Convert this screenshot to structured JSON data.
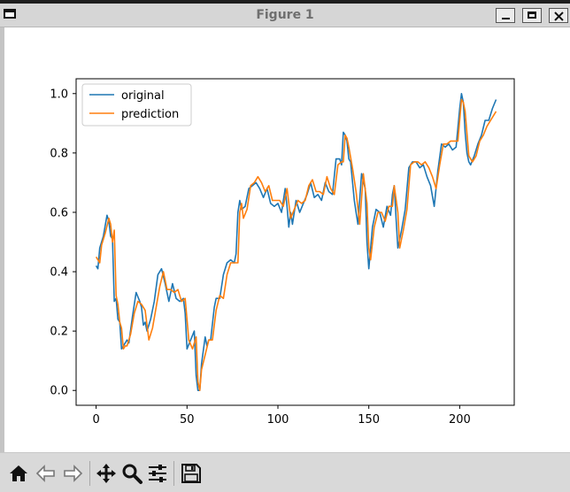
{
  "window": {
    "title": "Figure 1"
  },
  "toolbar": {
    "buttons": [
      {
        "name": "home-icon",
        "action": "Home"
      },
      {
        "name": "back-arrow-icon",
        "action": "Back"
      },
      {
        "name": "forward-arrow-icon",
        "action": "Forward"
      },
      {
        "name": "pan-move-icon",
        "action": "Pan"
      },
      {
        "name": "zoom-magnifier-icon",
        "action": "Zoom"
      },
      {
        "name": "configure-subplots-icon",
        "action": "Subplots"
      },
      {
        "name": "save-disk-icon",
        "action": "Save"
      }
    ]
  },
  "chart_data": {
    "type": "line",
    "title": "",
    "xlabel": "",
    "ylabel": "",
    "xlim": [
      -11,
      230
    ],
    "ylim": [
      -0.05,
      1.05
    ],
    "xticks": [
      0,
      50,
      100,
      150,
      200
    ],
    "yticks": [
      0.0,
      0.2,
      0.4,
      0.6,
      0.8,
      1.0
    ],
    "xtick_labels": [
      "0",
      "50",
      "100",
      "150",
      "200"
    ],
    "ytick_labels": [
      "0.0",
      "0.2",
      "0.4",
      "0.6",
      "0.8",
      "1.0"
    ],
    "grid": false,
    "legend_position": "upper-left",
    "series": [
      {
        "name": "original",
        "color": "#1f77b4",
        "keypoints": [
          [
            0,
            0.42
          ],
          [
            1,
            0.41
          ],
          [
            2,
            0.48
          ],
          [
            4,
            0.52
          ],
          [
            6,
            0.59
          ],
          [
            7,
            0.57
          ],
          [
            8,
            0.52
          ],
          [
            9,
            0.51
          ],
          [
            10,
            0.3
          ],
          [
            11,
            0.31
          ],
          [
            12,
            0.24
          ],
          [
            13,
            0.23
          ],
          [
            14,
            0.14
          ],
          [
            15,
            0.15
          ],
          [
            16,
            0.16
          ],
          [
            17,
            0.17
          ],
          [
            18,
            0.16
          ],
          [
            20,
            0.25
          ],
          [
            22,
            0.33
          ],
          [
            24,
            0.3
          ],
          [
            25,
            0.28
          ],
          [
            26,
            0.22
          ],
          [
            27,
            0.23
          ],
          [
            28,
            0.2
          ],
          [
            30,
            0.24
          ],
          [
            32,
            0.3
          ],
          [
            34,
            0.39
          ],
          [
            36,
            0.41
          ],
          [
            38,
            0.36
          ],
          [
            40,
            0.3
          ],
          [
            42,
            0.36
          ],
          [
            44,
            0.31
          ],
          [
            46,
            0.3
          ],
          [
            48,
            0.31
          ],
          [
            49,
            0.26
          ],
          [
            50,
            0.14
          ],
          [
            52,
            0.17
          ],
          [
            54,
            0.2
          ],
          [
            55,
            0.05
          ],
          [
            56,
            0.0
          ],
          [
            57,
            0.0
          ],
          [
            58,
            0.09
          ],
          [
            60,
            0.18
          ],
          [
            61,
            0.15
          ],
          [
            62,
            0.17
          ],
          [
            63,
            0.17
          ],
          [
            65,
            0.28
          ],
          [
            66,
            0.31
          ],
          [
            68,
            0.31
          ],
          [
            70,
            0.39
          ],
          [
            72,
            0.43
          ],
          [
            74,
            0.44
          ],
          [
            76,
            0.43
          ],
          [
            77,
            0.46
          ],
          [
            78,
            0.6
          ],
          [
            79,
            0.64
          ],
          [
            80,
            0.61
          ],
          [
            82,
            0.62
          ],
          [
            84,
            0.68
          ],
          [
            86,
            0.69
          ],
          [
            88,
            0.7
          ],
          [
            90,
            0.68
          ],
          [
            92,
            0.65
          ],
          [
            94,
            0.68
          ],
          [
            96,
            0.63
          ],
          [
            98,
            0.62
          ],
          [
            100,
            0.63
          ],
          [
            102,
            0.6
          ],
          [
            104,
            0.68
          ],
          [
            105,
            0.62
          ],
          [
            106,
            0.55
          ],
          [
            107,
            0.6
          ],
          [
            108,
            0.56
          ],
          [
            110,
            0.64
          ],
          [
            112,
            0.6
          ],
          [
            114,
            0.63
          ],
          [
            116,
            0.66
          ],
          [
            118,
            0.7
          ],
          [
            120,
            0.65
          ],
          [
            122,
            0.66
          ],
          [
            124,
            0.64
          ],
          [
            126,
            0.7
          ],
          [
            128,
            0.67
          ],
          [
            130,
            0.66
          ],
          [
            132,
            0.78
          ],
          [
            134,
            0.78
          ],
          [
            135,
            0.76
          ],
          [
            136,
            0.87
          ],
          [
            137,
            0.86
          ],
          [
            138,
            0.84
          ],
          [
            139,
            0.78
          ],
          [
            140,
            0.77
          ],
          [
            142,
            0.64
          ],
          [
            143,
            0.6
          ],
          [
            144,
            0.56
          ],
          [
            146,
            0.73
          ],
          [
            148,
            0.68
          ],
          [
            149,
            0.5
          ],
          [
            150,
            0.41
          ],
          [
            152,
            0.55
          ],
          [
            154,
            0.61
          ],
          [
            156,
            0.6
          ],
          [
            158,
            0.55
          ],
          [
            160,
            0.62
          ],
          [
            162,
            0.59
          ],
          [
            163,
            0.66
          ],
          [
            164,
            0.69
          ],
          [
            165,
            0.58
          ],
          [
            166,
            0.48
          ],
          [
            168,
            0.54
          ],
          [
            170,
            0.61
          ],
          [
            172,
            0.75
          ],
          [
            174,
            0.77
          ],
          [
            176,
            0.77
          ],
          [
            178,
            0.75
          ],
          [
            180,
            0.76
          ],
          [
            182,
            0.72
          ],
          [
            184,
            0.69
          ],
          [
            186,
            0.62
          ],
          [
            188,
            0.74
          ],
          [
            190,
            0.83
          ],
          [
            192,
            0.82
          ],
          [
            194,
            0.83
          ],
          [
            196,
            0.81
          ],
          [
            198,
            0.82
          ],
          [
            200,
            0.95
          ],
          [
            201,
            1.0
          ],
          [
            202,
            0.97
          ],
          [
            203,
            0.87
          ],
          [
            204,
            0.8
          ],
          [
            205,
            0.77
          ],
          [
            206,
            0.76
          ],
          [
            208,
            0.79
          ],
          [
            210,
            0.83
          ],
          [
            212,
            0.86
          ],
          [
            214,
            0.91
          ],
          [
            216,
            0.91
          ],
          [
            218,
            0.95
          ],
          [
            220,
            0.98
          ]
        ]
      },
      {
        "name": "prediction",
        "color": "#ff7f0e",
        "keypoints": [
          [
            0,
            0.45
          ],
          [
            1,
            0.44
          ],
          [
            2,
            0.43
          ],
          [
            3,
            0.49
          ],
          [
            5,
            0.53
          ],
          [
            7,
            0.58
          ],
          [
            8,
            0.56
          ],
          [
            9,
            0.5
          ],
          [
            10,
            0.54
          ],
          [
            11,
            0.32
          ],
          [
            12,
            0.29
          ],
          [
            13,
            0.23
          ],
          [
            14,
            0.21
          ],
          [
            15,
            0.14
          ],
          [
            16,
            0.15
          ],
          [
            17,
            0.15
          ],
          [
            19,
            0.19
          ],
          [
            21,
            0.26
          ],
          [
            23,
            0.3
          ],
          [
            25,
            0.29
          ],
          [
            27,
            0.27
          ],
          [
            29,
            0.17
          ],
          [
            31,
            0.21
          ],
          [
            33,
            0.28
          ],
          [
            35,
            0.35
          ],
          [
            37,
            0.4
          ],
          [
            39,
            0.34
          ],
          [
            41,
            0.34
          ],
          [
            43,
            0.33
          ],
          [
            45,
            0.34
          ],
          [
            47,
            0.3
          ],
          [
            49,
            0.31
          ],
          [
            51,
            0.17
          ],
          [
            53,
            0.14
          ],
          [
            55,
            0.18
          ],
          [
            56,
            0.03
          ],
          [
            57,
            0.0
          ],
          [
            58,
            0.07
          ],
          [
            60,
            0.12
          ],
          [
            62,
            0.17
          ],
          [
            64,
            0.17
          ],
          [
            66,
            0.27
          ],
          [
            68,
            0.32
          ],
          [
            70,
            0.31
          ],
          [
            72,
            0.39
          ],
          [
            74,
            0.43
          ],
          [
            76,
            0.43
          ],
          [
            78,
            0.43
          ],
          [
            79,
            0.6
          ],
          [
            80,
            0.63
          ],
          [
            81,
            0.58
          ],
          [
            83,
            0.61
          ],
          [
            85,
            0.69
          ],
          [
            87,
            0.7
          ],
          [
            89,
            0.72
          ],
          [
            91,
            0.7
          ],
          [
            93,
            0.67
          ],
          [
            95,
            0.69
          ],
          [
            97,
            0.64
          ],
          [
            99,
            0.64
          ],
          [
            101,
            0.64
          ],
          [
            103,
            0.62
          ],
          [
            105,
            0.68
          ],
          [
            107,
            0.58
          ],
          [
            109,
            0.61
          ],
          [
            111,
            0.64
          ],
          [
            113,
            0.63
          ],
          [
            115,
            0.64
          ],
          [
            117,
            0.69
          ],
          [
            119,
            0.71
          ],
          [
            121,
            0.67
          ],
          [
            123,
            0.67
          ],
          [
            125,
            0.66
          ],
          [
            127,
            0.72
          ],
          [
            129,
            0.68
          ],
          [
            131,
            0.66
          ],
          [
            133,
            0.76
          ],
          [
            135,
            0.77
          ],
          [
            136,
            0.77
          ],
          [
            137,
            0.86
          ],
          [
            138,
            0.85
          ],
          [
            139,
            0.82
          ],
          [
            141,
            0.75
          ],
          [
            143,
            0.67
          ],
          [
            145,
            0.56
          ],
          [
            147,
            0.73
          ],
          [
            149,
            0.63
          ],
          [
            150,
            0.48
          ],
          [
            151,
            0.44
          ],
          [
            153,
            0.55
          ],
          [
            155,
            0.6
          ],
          [
            157,
            0.6
          ],
          [
            159,
            0.57
          ],
          [
            161,
            0.62
          ],
          [
            163,
            0.62
          ],
          [
            164,
            0.69
          ],
          [
            166,
            0.6
          ],
          [
            167,
            0.48
          ],
          [
            169,
            0.54
          ],
          [
            171,
            0.61
          ],
          [
            173,
            0.76
          ],
          [
            175,
            0.77
          ],
          [
            177,
            0.77
          ],
          [
            179,
            0.76
          ],
          [
            181,
            0.77
          ],
          [
            183,
            0.75
          ],
          [
            185,
            0.72
          ],
          [
            187,
            0.68
          ],
          [
            189,
            0.76
          ],
          [
            191,
            0.83
          ],
          [
            193,
            0.83
          ],
          [
            195,
            0.84
          ],
          [
            197,
            0.84
          ],
          [
            199,
            0.84
          ],
          [
            201,
            0.98
          ],
          [
            202,
            0.97
          ],
          [
            203,
            0.94
          ],
          [
            205,
            0.79
          ],
          [
            207,
            0.77
          ],
          [
            209,
            0.79
          ],
          [
            211,
            0.84
          ],
          [
            213,
            0.86
          ],
          [
            215,
            0.89
          ],
          [
            217,
            0.91
          ],
          [
            219,
            0.93
          ],
          [
            220,
            0.94
          ]
        ]
      }
    ]
  }
}
